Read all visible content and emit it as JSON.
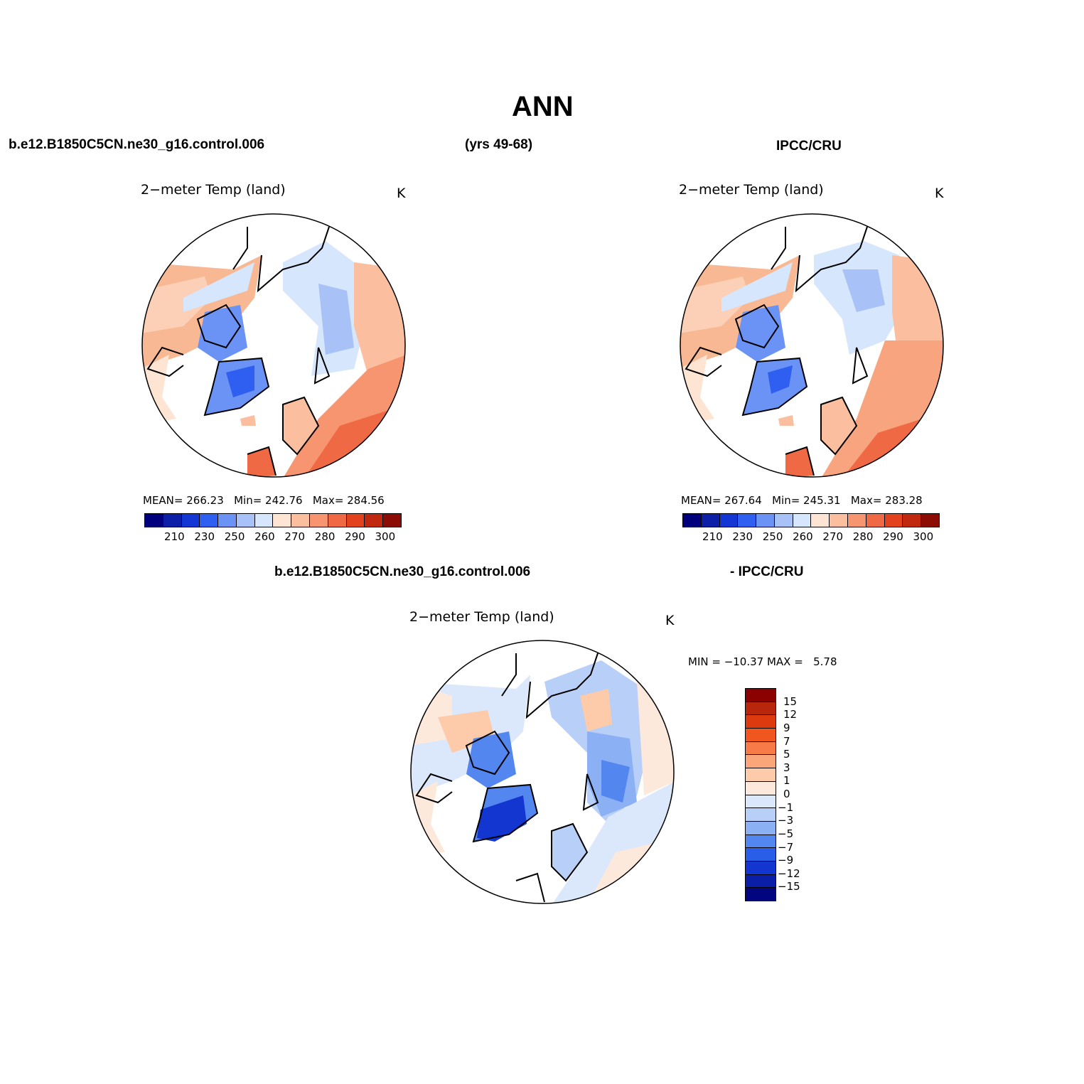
{
  "page": {
    "title": "ANN",
    "case_label": "b.e12.B1850C5CN.ne30_g16.control.006",
    "years_label": "(yrs 49-68)",
    "obs_label": "IPCC/CRU",
    "diff_case_label": "b.e12.B1850C5CN.ne30_g16.control.006",
    "diff_obs_label": "- IPCC/CRU"
  },
  "panels": {
    "model": {
      "title": "2−meter Temp (land)",
      "units": "K",
      "stats_mean_label": "MEAN=",
      "stats_mean": "266.23",
      "stats_min_label": "Min=",
      "stats_min": "242.76",
      "stats_max_label": "Max=",
      "stats_max": "284.56"
    },
    "obs": {
      "title": "2−meter Temp (land)",
      "units": "K",
      "stats_mean_label": "MEAN=",
      "stats_mean": "267.64",
      "stats_min_label": "Min=",
      "stats_min": "245.31",
      "stats_max_label": "Max=",
      "stats_max": "283.28"
    },
    "diff": {
      "title": "2−meter Temp (land)",
      "units": "K",
      "stats_text": "MIN = −10.37 MAX =   5.78"
    }
  },
  "colorbars": {
    "abs": {
      "colors": [
        "#00007f",
        "#0d1fa6",
        "#1436d4",
        "#2f5ff0",
        "#6b93f5",
        "#a8c2f7",
        "#d6e6fc",
        "#fde4d3",
        "#fbbf9f",
        "#f6956f",
        "#ef6a44",
        "#e2421d",
        "#c0280f",
        "#8c0b04"
      ],
      "tick_labels": [
        "210",
        "230",
        "250",
        "260",
        "270",
        "280",
        "290",
        "300"
      ]
    },
    "diff": {
      "colors": [
        "#8b0000",
        "#b8260b",
        "#de3a10",
        "#f0561e",
        "#f87a47",
        "#fba67a",
        "#fdcbaa",
        "#fde9dc",
        "#dbe8fb",
        "#b8cff8",
        "#8bb0f4",
        "#5486f0",
        "#2a5ee9",
        "#1336d0",
        "#0a1ea8",
        "#02057f"
      ],
      "tick_labels": [
        "15",
        "12",
        "9",
        "7",
        "5",
        "3",
        "1",
        "0",
        "−1",
        "−3",
        "−5",
        "−7",
        "−9",
        "−12",
        "−15"
      ]
    }
  }
}
